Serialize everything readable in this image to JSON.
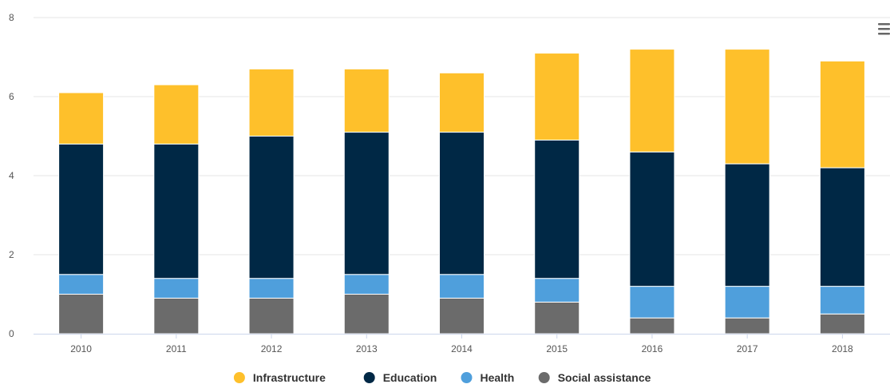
{
  "chart_data": {
    "type": "bar",
    "stacked": true,
    "categories": [
      "2010",
      "2011",
      "2012",
      "2013",
      "2014",
      "2015",
      "2016",
      "2017",
      "2018"
    ],
    "series": [
      {
        "name": "Social assistance",
        "color": "#6b6b6b",
        "values": [
          1.0,
          0.9,
          0.9,
          1.0,
          0.9,
          0.8,
          0.4,
          0.4,
          0.5
        ]
      },
      {
        "name": "Health",
        "color": "#4f9fdc",
        "values": [
          0.5,
          0.5,
          0.5,
          0.5,
          0.6,
          0.6,
          0.8,
          0.8,
          0.7
        ]
      },
      {
        "name": "Education",
        "color": "#002845",
        "values": [
          3.3,
          3.4,
          3.6,
          3.6,
          3.6,
          3.5,
          3.4,
          3.1,
          3.0
        ]
      },
      {
        "name": "Infrastructure",
        "color": "#fec02b",
        "values": [
          1.3,
          1.5,
          1.7,
          1.6,
          1.5,
          2.2,
          2.6,
          2.9,
          2.7
        ]
      }
    ],
    "legend_order": [
      "Infrastructure",
      "Education",
      "Health",
      "Social assistance"
    ],
    "y_ticks": [
      "0",
      "2",
      "4",
      "6",
      "8"
    ],
    "ylim": [
      0,
      8
    ],
    "grid": true,
    "legend_position": "bottom-center"
  },
  "menu": {
    "icon": "hamburger-menu-icon"
  }
}
